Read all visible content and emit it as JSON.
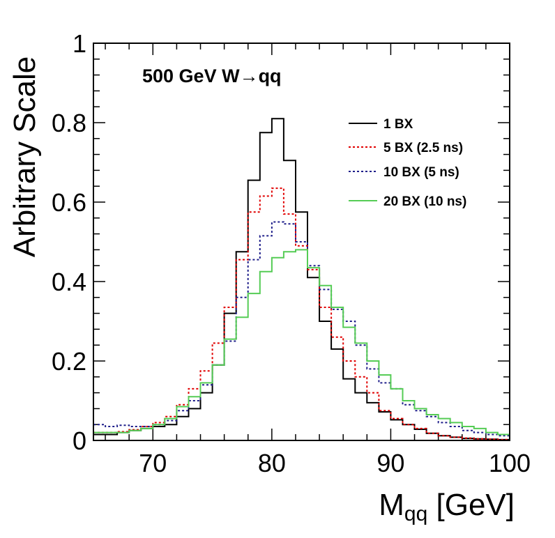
{
  "chart_data": {
    "type": "line",
    "title": "",
    "annotation": {
      "prefix": "500 GeV W",
      "arrow": "→",
      "suffix": "qq"
    },
    "xlabel": {
      "main": "M",
      "sub": "qq",
      "unit": " [GeV]"
    },
    "ylabel": "Arbitrary Scale",
    "xlim": [
      65,
      100
    ],
    "ylim": [
      0,
      1
    ],
    "x_ticks": [
      70,
      80,
      90,
      100
    ],
    "y_ticks": [
      0,
      0.2,
      0.4,
      0.6,
      0.8,
      1
    ],
    "y_tick_labels": [
      "0",
      "0.2",
      "0.4",
      "0.6",
      "0.8",
      "1"
    ],
    "grid": false,
    "legend_position": "top-right",
    "bin_edges": [
      65,
      66,
      67,
      68,
      69,
      70,
      71,
      72,
      73,
      74,
      75,
      76,
      77,
      78,
      79,
      80,
      81,
      82,
      83,
      84,
      85,
      86,
      87,
      88,
      89,
      90,
      91,
      92,
      93,
      94,
      95,
      96,
      97,
      98,
      99,
      100
    ],
    "series": [
      {
        "name": "1 BX",
        "color": "#000000",
        "style": "solid",
        "values": [
          0.015,
          0.015,
          0.02,
          0.025,
          0.03,
          0.035,
          0.04,
          0.06,
          0.08,
          0.12,
          0.19,
          0.32,
          0.475,
          0.655,
          0.775,
          0.81,
          0.705,
          0.575,
          0.41,
          0.3,
          0.23,
          0.155,
          0.12,
          0.095,
          0.072,
          0.052,
          0.04,
          0.028,
          0.018,
          0.012,
          0.008,
          0.005,
          0.004,
          0.003,
          0.002
        ]
      },
      {
        "name": "5 BX (2.5 ns)",
        "color": "#e00000",
        "style": "dotted",
        "values": [
          0.02,
          0.02,
          0.022,
          0.027,
          0.035,
          0.045,
          0.06,
          0.09,
          0.13,
          0.175,
          0.245,
          0.335,
          0.455,
          0.575,
          0.615,
          0.635,
          0.57,
          0.49,
          0.43,
          0.335,
          0.26,
          0.2,
          0.16,
          0.12,
          0.075,
          0.055,
          0.04,
          0.03,
          0.018,
          0.012,
          0.008,
          0.006,
          0.004,
          0.003,
          0.002
        ]
      },
      {
        "name": "10 BX (5 ns)",
        "color": "#1e1e8a",
        "style": "dotted",
        "values": [
          0.04,
          0.035,
          0.038,
          0.035,
          0.035,
          0.04,
          0.05,
          0.075,
          0.1,
          0.14,
          0.19,
          0.25,
          0.36,
          0.455,
          0.515,
          0.55,
          0.545,
          0.5,
          0.44,
          0.38,
          0.33,
          0.3,
          0.24,
          0.18,
          0.145,
          0.13,
          0.09,
          0.075,
          0.06,
          0.045,
          0.035,
          0.025,
          0.02,
          0.015,
          0.012
        ]
      },
      {
        "name": "20 BX (10 ns)",
        "color": "#55cc55",
        "style": "solid",
        "values": [
          0.02,
          0.02,
          0.02,
          0.025,
          0.03,
          0.04,
          0.055,
          0.085,
          0.11,
          0.145,
          0.19,
          0.255,
          0.31,
          0.37,
          0.425,
          0.46,
          0.475,
          0.48,
          0.435,
          0.39,
          0.335,
          0.285,
          0.245,
          0.2,
          0.165,
          0.13,
          0.1,
          0.08,
          0.065,
          0.055,
          0.045,
          0.035,
          0.03,
          0.02,
          0.015
        ]
      }
    ]
  }
}
